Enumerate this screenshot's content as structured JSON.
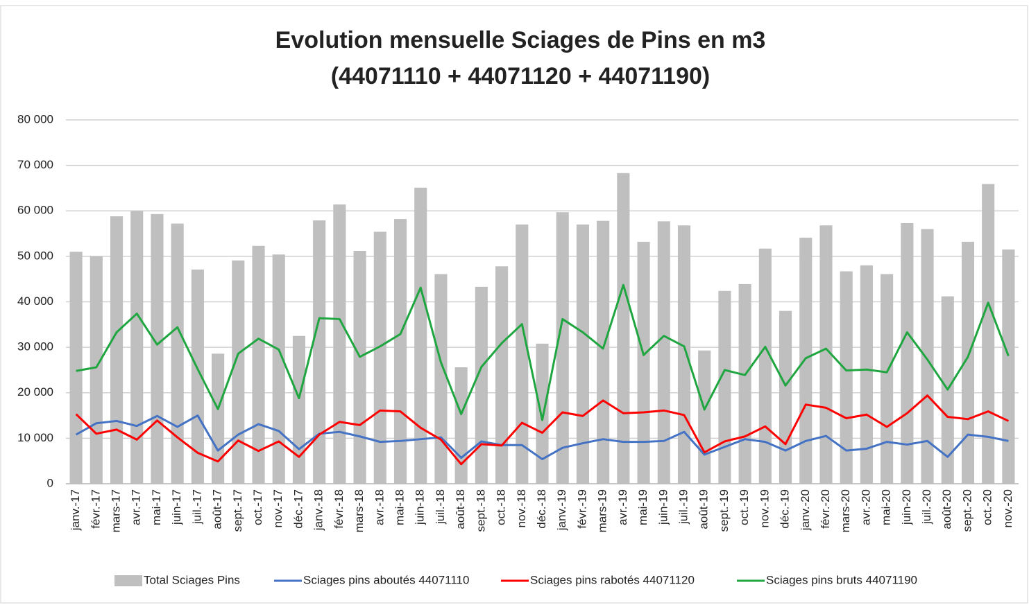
{
  "chart_data": {
    "type": "bar_line",
    "title": "Evolution mensuelle Sciages de Pins en m3",
    "subtitle": "(44071110 + 44071120 + 44071190)",
    "categories": [
      "janv.-17",
      "févr.-17",
      "mars-17",
      "avr.-17",
      "mai-17",
      "juin-17",
      "juil.-17",
      "août-17",
      "sept.-17",
      "oct.-17",
      "nov.-17",
      "déc.-17",
      "janv.-18",
      "févr.-18",
      "mars-18",
      "avr.-18",
      "mai-18",
      "juin-18",
      "juil.-18",
      "août-18",
      "sept.-18",
      "oct.-18",
      "nov.-18",
      "déc.-18",
      "janv.-19",
      "févr.-19",
      "mars-19",
      "avr.-19",
      "mai-19",
      "juin-19",
      "juil.-19",
      "août-19",
      "sept.-19",
      "oct.-19",
      "nov.-19",
      "déc.-19",
      "janv.-20",
      "févr.-20",
      "mars-20",
      "avr.-20",
      "mai-20",
      "juin-20",
      "juil.-20",
      "août-20",
      "sept.-20",
      "oct.-20",
      "nov.-20"
    ],
    "series": [
      {
        "name": "Total Sciages Pins",
        "kind": "bar",
        "color": "#bfbfbf",
        "values": [
          51000,
          50000,
          58800,
          60000,
          59300,
          57200,
          47100,
          28600,
          49100,
          52300,
          50400,
          32500,
          57900,
          61400,
          51200,
          55400,
          58200,
          65100,
          46100,
          25600,
          43300,
          47800,
          57000,
          30800,
          59700,
          57000,
          57800,
          68300,
          53200,
          57700,
          56800,
          29300,
          42400,
          43900,
          51700,
          38000,
          54100,
          56800,
          46700,
          48000,
          46100,
          57300,
          56000,
          41200,
          53200,
          65900,
          51500
        ]
      },
      {
        "name": "Sciages pins aboutés 44071110",
        "kind": "line",
        "color": "#4472c4",
        "values": [
          10800,
          13300,
          13800,
          12700,
          14900,
          12500,
          15000,
          7300,
          10800,
          13100,
          11600,
          7600,
          11000,
          11400,
          10400,
          9200,
          9400,
          9800,
          10200,
          5700,
          9300,
          8500,
          8500,
          5400,
          7900,
          8900,
          9800,
          9200,
          9200,
          9400,
          11400,
          6400,
          8100,
          9800,
          9200,
          7300,
          9400,
          10500,
          7300,
          7700,
          9200,
          8600,
          9400,
          5900,
          10800,
          10300,
          9400
        ]
      },
      {
        "name": "Sciages pins rabotés 44071120",
        "kind": "line",
        "color": "#ff0000",
        "values": [
          15300,
          11000,
          11900,
          9700,
          13900,
          10200,
          6800,
          4900,
          9500,
          7200,
          9300,
          5900,
          10800,
          13600,
          12900,
          16100,
          15900,
          12300,
          9700,
          4300,
          8700,
          8400,
          13400,
          11200,
          15700,
          14900,
          18300,
          15500,
          15700,
          16100,
          15100,
          6900,
          9300,
          10400,
          12600,
          8700,
          17400,
          16700,
          14400,
          15200,
          12500,
          15500,
          19400,
          14700,
          14200,
          15900,
          13800
        ]
      },
      {
        "name": "Sciages pins bruts 44071190",
        "kind": "line",
        "color": "#1fa640",
        "values": [
          24800,
          25600,
          33300,
          37400,
          30600,
          34400,
          25200,
          16400,
          28600,
          31900,
          29500,
          18800,
          36400,
          36200,
          27900,
          30200,
          32900,
          43100,
          26700,
          15300,
          25700,
          30900,
          35100,
          14000,
          36200,
          33300,
          29700,
          43700,
          28300,
          32500,
          30200,
          16300,
          25000,
          23900,
          30100,
          21600,
          27600,
          29700,
          24900,
          25100,
          24500,
          33300,
          27300,
          20700,
          27900,
          39800,
          28100
        ]
      }
    ],
    "ylim": [
      0,
      80000
    ],
    "yticks": [
      0,
      {
        "value": 10000,
        "label": "10 000"
      },
      {
        "value": 20000,
        "label": "20 000"
      },
      {
        "value": 30000,
        "label": "30 000"
      },
      {
        "value": 40000,
        "label": "40 000"
      },
      {
        "value": 50000,
        "label": "50 000"
      },
      {
        "value": 60000,
        "label": "60 000"
      },
      {
        "value": 70000,
        "label": "70 000"
      },
      {
        "value": 80000,
        "label": "80 000"
      }
    ],
    "grid": true,
    "legend": "bottom"
  }
}
